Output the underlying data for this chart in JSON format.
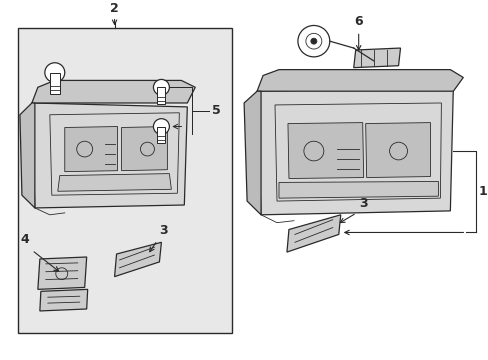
{
  "figsize": [
    4.89,
    3.6
  ],
  "dpi": 100,
  "bg": "#ffffff",
  "lc": "#2a2a2a",
  "fill_box": "#e8e8e8",
  "fill_console": "#d8d8d8",
  "fill_part": "#cccccc",
  "lw_main": 0.9,
  "lw_inner": 0.6
}
